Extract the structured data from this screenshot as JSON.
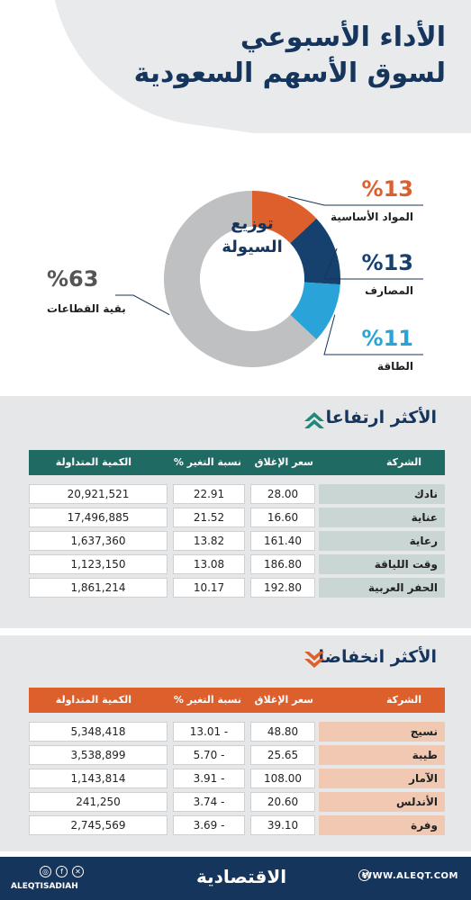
{
  "title": {
    "line1": "الأداء الأسبوعي",
    "line2": "لسوق الأسهم السعودية"
  },
  "chart_data": [
    {
      "type": "pie",
      "center_label": [
        "توزيع",
        "السيولة"
      ],
      "slices": [
        {
          "label": "المواد الأساسية",
          "value": 13,
          "display": "%13",
          "color": "#dd5f2b"
        },
        {
          "label": "المصارف",
          "value": 13,
          "display": "%13",
          "color": "#16406d"
        },
        {
          "label": "الطاقة",
          "value": 11,
          "display": "%11",
          "color": "#29a3d8"
        },
        {
          "label": "بقية القطاعات",
          "value": 63,
          "display": "%63",
          "color": "#bfc0c2"
        }
      ]
    },
    {
      "type": "table",
      "title": "الأكثر ارتفاعا",
      "columns": [
        "الشركة",
        "سعر الإغلاق",
        "نسبة التغير %",
        "الكمية المتداولة"
      ],
      "rows": [
        {
          "company": "نادك",
          "close": "28.00",
          "change": "22.91",
          "volume": "20,921,521"
        },
        {
          "company": "عناية",
          "close": "16.60",
          "change": "21.52",
          "volume": "17,496,885"
        },
        {
          "company": "رعاية",
          "close": "161.40",
          "change": "13.82",
          "volume": "1,637,360"
        },
        {
          "company": "وقت اللياقة",
          "close": "186.80",
          "change": "13.08",
          "volume": "1,123,150"
        },
        {
          "company": "الحفر العربية",
          "close": "192.80",
          "change": "10.17",
          "volume": "1,861,214"
        }
      ]
    },
    {
      "type": "table",
      "title": "الأكثر انخفاضا",
      "columns": [
        "الشركة",
        "سعر الإغلاق",
        "نسبة التغير %",
        "الكمية المتداولة"
      ],
      "rows": [
        {
          "company": "نسيج",
          "close": "48.80",
          "change": "13.01 -",
          "volume": "5,348,418"
        },
        {
          "company": "طيبة",
          "close": "25.65",
          "change": "5.70 -",
          "volume": "3,538,899"
        },
        {
          "company": "الآمار",
          "close": "108.00",
          "change": "3.91 -",
          "volume": "1,143,814"
        },
        {
          "company": "الأندلس",
          "close": "20.60",
          "change": "3.74 -",
          "volume": "241,250"
        },
        {
          "company": "وفرة",
          "close": "39.10",
          "change": "3.69 -",
          "volume": "2,745,569"
        }
      ]
    }
  ],
  "colors": {
    "navy": "#16355c",
    "teal": "#1f6b63",
    "teal_name": "#c9d6d4",
    "orange": "#dd5f2b",
    "orange_name": "#f1c9b3"
  },
  "footer": {
    "site": "WWW.ALEQT.COM",
    "handle": "ALEQTISADIAH",
    "logo": "الاقتصادية"
  }
}
